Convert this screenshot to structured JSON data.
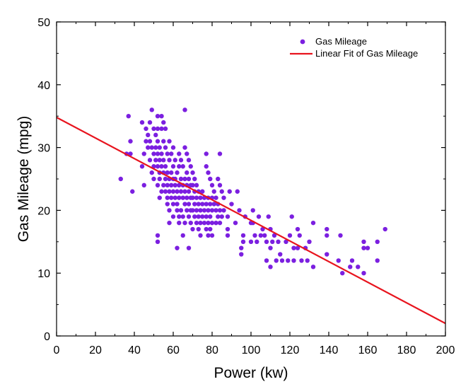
{
  "chart_data": {
    "type": "scatter",
    "xlabel": "Power (kw)",
    "ylabel": "Gas Mileage (mpg)",
    "xlim": [
      0,
      200
    ],
    "ylim": [
      0,
      50
    ],
    "xticks": [
      0,
      20,
      40,
      60,
      80,
      100,
      120,
      140,
      160,
      180,
      200
    ],
    "yticks": [
      0,
      10,
      20,
      30,
      40,
      50
    ],
    "xtick_labels": [
      "0",
      "20",
      "40",
      "60",
      "80",
      "100",
      "120",
      "140",
      "160",
      "180",
      "200"
    ],
    "ytick_labels": [
      "0",
      "10",
      "20",
      "30",
      "40",
      "50"
    ],
    "grid": false,
    "legend_position": "top-right",
    "series": [
      {
        "name": "Gas Mileage",
        "kind": "scatter",
        "color": "#7b1fe0",
        "points": [
          [
            33,
            25
          ],
          [
            36,
            29
          ],
          [
            37,
            35
          ],
          [
            38,
            29
          ],
          [
            38,
            31
          ],
          [
            39,
            23
          ],
          [
            44,
            34
          ],
          [
            44,
            27
          ],
          [
            45,
            29
          ],
          [
            45,
            24
          ],
          [
            46,
            31
          ],
          [
            46,
            33
          ],
          [
            47,
            32
          ],
          [
            47,
            30
          ],
          [
            48,
            34
          ],
          [
            48,
            28
          ],
          [
            48,
            31
          ],
          [
            49,
            36
          ],
          [
            49,
            26
          ],
          [
            49,
            30
          ],
          [
            50,
            33
          ],
          [
            50,
            29
          ],
          [
            50,
            27
          ],
          [
            50,
            25
          ],
          [
            51,
            32
          ],
          [
            51,
            30
          ],
          [
            51,
            28
          ],
          [
            52,
            35
          ],
          [
            52,
            33
          ],
          [
            52,
            31
          ],
          [
            52,
            29
          ],
          [
            52,
            27
          ],
          [
            52,
            24
          ],
          [
            52,
            16
          ],
          [
            52,
            15
          ],
          [
            53,
            30
          ],
          [
            53,
            28
          ],
          [
            53,
            26
          ],
          [
            53,
            25
          ],
          [
            53,
            22
          ],
          [
            54,
            35
          ],
          [
            54,
            33
          ],
          [
            54,
            29
          ],
          [
            54,
            27
          ],
          [
            54,
            23
          ],
          [
            55,
            34
          ],
          [
            55,
            31
          ],
          [
            55,
            28
          ],
          [
            55,
            26
          ],
          [
            55,
            24
          ],
          [
            56,
            33
          ],
          [
            56,
            30
          ],
          [
            56,
            27
          ],
          [
            56,
            25
          ],
          [
            56,
            23
          ],
          [
            57,
            29
          ],
          [
            57,
            26
          ],
          [
            57,
            24
          ],
          [
            57,
            22
          ],
          [
            57,
            21
          ],
          [
            58,
            31
          ],
          [
            58,
            28
          ],
          [
            58,
            25
          ],
          [
            58,
            23
          ],
          [
            58,
            20
          ],
          [
            58,
            18
          ],
          [
            59,
            29
          ],
          [
            59,
            26
          ],
          [
            59,
            24
          ],
          [
            59,
            22
          ],
          [
            60,
            30
          ],
          [
            60,
            27
          ],
          [
            60,
            25
          ],
          [
            60,
            23
          ],
          [
            60,
            21
          ],
          [
            60,
            19
          ],
          [
            61,
            28
          ],
          [
            61,
            25
          ],
          [
            61,
            24
          ],
          [
            61,
            22
          ],
          [
            62,
            26
          ],
          [
            62,
            23
          ],
          [
            62,
            21
          ],
          [
            62,
            20
          ],
          [
            62,
            14
          ],
          [
            63,
            29
          ],
          [
            63,
            27
          ],
          [
            63,
            24
          ],
          [
            63,
            22
          ],
          [
            63,
            19
          ],
          [
            63,
            18
          ],
          [
            64,
            28
          ],
          [
            64,
            25
          ],
          [
            64,
            23
          ],
          [
            64,
            20
          ],
          [
            65,
            27
          ],
          [
            65,
            24
          ],
          [
            65,
            22
          ],
          [
            65,
            19
          ],
          [
            65,
            16
          ],
          [
            66,
            36
          ],
          [
            66,
            30
          ],
          [
            66,
            25
          ],
          [
            66,
            23
          ],
          [
            66,
            21
          ],
          [
            66,
            18
          ],
          [
            67,
            29
          ],
          [
            67,
            26
          ],
          [
            67,
            24
          ],
          [
            67,
            22
          ],
          [
            67,
            20
          ],
          [
            68,
            28
          ],
          [
            68,
            25
          ],
          [
            68,
            23
          ],
          [
            68,
            21
          ],
          [
            68,
            19
          ],
          [
            68,
            14
          ],
          [
            69,
            27
          ],
          [
            69,
            24
          ],
          [
            69,
            22
          ],
          [
            69,
            20
          ],
          [
            69,
            18
          ],
          [
            70,
            26
          ],
          [
            70,
            24
          ],
          [
            70,
            22
          ],
          [
            70,
            20
          ],
          [
            70,
            17
          ],
          [
            71,
            25
          ],
          [
            71,
            23
          ],
          [
            71,
            21
          ],
          [
            71,
            19
          ],
          [
            72,
            24
          ],
          [
            72,
            22
          ],
          [
            72,
            20
          ],
          [
            72,
            18
          ],
          [
            73,
            23
          ],
          [
            73,
            21
          ],
          [
            73,
            19
          ],
          [
            73,
            17
          ],
          [
            74,
            22
          ],
          [
            74,
            20
          ],
          [
            74,
            18
          ],
          [
            74,
            16
          ],
          [
            75,
            23
          ],
          [
            75,
            21
          ],
          [
            75,
            19
          ],
          [
            76,
            22
          ],
          [
            76,
            20
          ],
          [
            76,
            18
          ],
          [
            77,
            29
          ],
          [
            77,
            27
          ],
          [
            77,
            21
          ],
          [
            77,
            19
          ],
          [
            77,
            17
          ],
          [
            78,
            26
          ],
          [
            78,
            22
          ],
          [
            78,
            20
          ],
          [
            78,
            18
          ],
          [
            78,
            16
          ],
          [
            79,
            25
          ],
          [
            79,
            21
          ],
          [
            79,
            19
          ],
          [
            79,
            17
          ],
          [
            80,
            24
          ],
          [
            80,
            22
          ],
          [
            80,
            20
          ],
          [
            80,
            18
          ],
          [
            80,
            16
          ],
          [
            81,
            23
          ],
          [
            81,
            21
          ],
          [
            82,
            22
          ],
          [
            82,
            20
          ],
          [
            82,
            18
          ],
          [
            83,
            25
          ],
          [
            83,
            21
          ],
          [
            83,
            19
          ],
          [
            84,
            29
          ],
          [
            84,
            24
          ],
          [
            84,
            20
          ],
          [
            84,
            18
          ],
          [
            85,
            23
          ],
          [
            85,
            19
          ],
          [
            86,
            22
          ],
          [
            86,
            20
          ],
          [
            88,
            19
          ],
          [
            88,
            17
          ],
          [
            88,
            16
          ],
          [
            89,
            23
          ],
          [
            90,
            21
          ],
          [
            92,
            18
          ],
          [
            93,
            23
          ],
          [
            94,
            20
          ],
          [
            95,
            14
          ],
          [
            95,
            13
          ],
          [
            96,
            16
          ],
          [
            96,
            15
          ],
          [
            97,
            19
          ],
          [
            100,
            18
          ],
          [
            100,
            15
          ],
          [
            101,
            20
          ],
          [
            101,
            18
          ],
          [
            102,
            16
          ],
          [
            103,
            15
          ],
          [
            104,
            19
          ],
          [
            105,
            16
          ],
          [
            106,
            17
          ],
          [
            107,
            16
          ],
          [
            108,
            12
          ],
          [
            108,
            15
          ],
          [
            109,
            19
          ],
          [
            110,
            17
          ],
          [
            110,
            14
          ],
          [
            110,
            11
          ],
          [
            111,
            15
          ],
          [
            112,
            16
          ],
          [
            113,
            12
          ],
          [
            114,
            15
          ],
          [
            115,
            13
          ],
          [
            116,
            12
          ],
          [
            118,
            15
          ],
          [
            119,
            12
          ],
          [
            120,
            16
          ],
          [
            121,
            19
          ],
          [
            122,
            14
          ],
          [
            122,
            12
          ],
          [
            124,
            17
          ],
          [
            124,
            14
          ],
          [
            125,
            16
          ],
          [
            126,
            12
          ],
          [
            128,
            14
          ],
          [
            129,
            12
          ],
          [
            130,
            15
          ],
          [
            132,
            18
          ],
          [
            132,
            11
          ],
          [
            139,
            17
          ],
          [
            139,
            16
          ],
          [
            139,
            13
          ],
          [
            145,
            12
          ],
          [
            146,
            16
          ],
          [
            147,
            10
          ],
          [
            151,
            11
          ],
          [
            152,
            12
          ],
          [
            155,
            11
          ],
          [
            158,
            10
          ],
          [
            158,
            14
          ],
          [
            158,
            15
          ],
          [
            160,
            14
          ],
          [
            165,
            15
          ],
          [
            165,
            12
          ],
          [
            169,
            17
          ]
        ]
      },
      {
        "name": "Linear Fit of Gas Mileage",
        "kind": "line",
        "color": "#e8141e",
        "points": [
          [
            0,
            34.8
          ],
          [
            200,
            2.0
          ]
        ]
      }
    ]
  }
}
